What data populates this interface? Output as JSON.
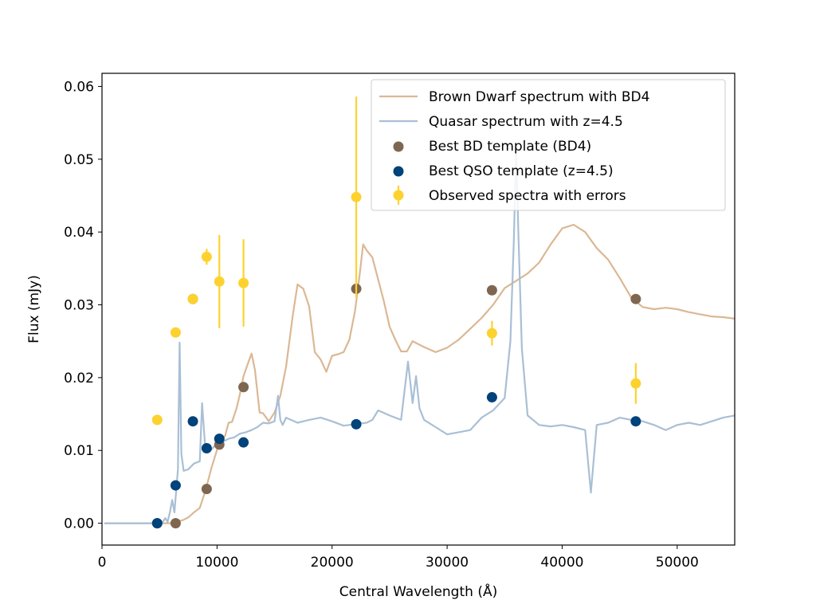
{
  "chart_data": {
    "type": "line",
    "title": "",
    "xlabel": "Central Wavelength (Å)",
    "ylabel": "Flux (mJy)",
    "xlim": [
      0,
      55000
    ],
    "ylim": [
      -0.003,
      0.0618
    ],
    "grid": false,
    "legend_position": "top-right",
    "x_ticks": [
      0,
      10000,
      20000,
      30000,
      40000,
      50000
    ],
    "x_tick_labels": [
      "0",
      "10000",
      "20000",
      "30000",
      "40000",
      "50000"
    ],
    "y_ticks": [
      0.0,
      0.01,
      0.02,
      0.03,
      0.04,
      0.05,
      0.06
    ],
    "y_tick_labels": [
      "0.00",
      "0.01",
      "0.02",
      "0.03",
      "0.04",
      "0.05",
      "0.06"
    ],
    "series": [
      {
        "name": "Brown Dwarf spectrum with BD4",
        "kind": "line",
        "color": "#dbb894",
        "x": [
          200,
          3000,
          5000,
          6000,
          6300,
          6600,
          7000,
          7500,
          8000,
          8500,
          9000,
          9500,
          10000,
          10300,
          10700,
          11000,
          11300,
          11700,
          12000,
          12300,
          12700,
          13000,
          13300,
          13700,
          14000,
          14500,
          15000,
          15500,
          16000,
          16600,
          17000,
          17500,
          18000,
          18500,
          19000,
          19500,
          20000,
          20500,
          21000,
          21500,
          22000,
          22400,
          22700,
          23000,
          23500,
          24000,
          24500,
          25000,
          25500,
          26000,
          26500,
          27000,
          27500,
          28000,
          29000,
          30000,
          31000,
          32000,
          33000,
          34000,
          35000,
          36000,
          37000,
          38000,
          39000,
          40000,
          41000,
          42000,
          43000,
          44000,
          45000,
          46000,
          47000,
          48000,
          49000,
          50000,
          51000,
          52000,
          53000,
          54000,
          55000
        ],
        "y": [
          0.0,
          0.0,
          0.0,
          0.0,
          0.0002,
          0.0003,
          0.0004,
          0.0008,
          0.0015,
          0.0021,
          0.0045,
          0.0075,
          0.0101,
          0.0115,
          0.012,
          0.0138,
          0.0139,
          0.0158,
          0.0178,
          0.0202,
          0.022,
          0.0233,
          0.021,
          0.0152,
          0.0151,
          0.014,
          0.0152,
          0.0175,
          0.0215,
          0.0287,
          0.0328,
          0.0322,
          0.0298,
          0.0235,
          0.0225,
          0.0208,
          0.023,
          0.0232,
          0.0235,
          0.0252,
          0.0292,
          0.0342,
          0.0383,
          0.0375,
          0.0365,
          0.0335,
          0.0305,
          0.027,
          0.0252,
          0.0236,
          0.0236,
          0.025,
          0.0246,
          0.0242,
          0.0235,
          0.0241,
          0.0252,
          0.0267,
          0.0282,
          0.03,
          0.0323,
          0.0333,
          0.0343,
          0.0358,
          0.0383,
          0.0405,
          0.041,
          0.04,
          0.0378,
          0.0362,
          0.0337,
          0.031,
          0.0297,
          0.0294,
          0.0296,
          0.0294,
          0.029,
          0.0287,
          0.0284,
          0.0283,
          0.0281
        ]
      },
      {
        "name": "Quasar spectrum with z=4.5",
        "kind": "line",
        "color": "#a9bfd5",
        "x": [
          200,
          4500,
          5200,
          5500,
          5700,
          5900,
          6100,
          6300,
          6600,
          6750,
          6900,
          7100,
          7500,
          8000,
          8500,
          8700,
          9000,
          9500,
          10000,
          10500,
          11000,
          11500,
          12000,
          12500,
          13000,
          13500,
          14000,
          14500,
          15000,
          15300,
          15500,
          15700,
          16000,
          17000,
          18000,
          19000,
          20000,
          21000,
          22000,
          23000,
          23500,
          24000,
          25000,
          26000,
          26600,
          27000,
          27300,
          27600,
          28000,
          29000,
          30000,
          31000,
          32000,
          33000,
          34000,
          35000,
          35500,
          35800,
          36000,
          36200,
          36500,
          37000,
          38000,
          39000,
          40000,
          41000,
          42000,
          42500,
          43000,
          44000,
          45000,
          46000,
          47000,
          48000,
          49000,
          50000,
          51000,
          52000,
          53000,
          54000,
          55000
        ],
        "y": [
          0.0,
          0.0,
          0.0,
          0.0007,
          0.0002,
          0.0015,
          0.0032,
          0.0015,
          0.0074,
          0.0248,
          0.0095,
          0.0072,
          0.0074,
          0.0082,
          0.0085,
          0.0165,
          0.0098,
          0.0101,
          0.011,
          0.0112,
          0.0116,
          0.0118,
          0.0123,
          0.0125,
          0.0128,
          0.0132,
          0.0138,
          0.0137,
          0.014,
          0.0175,
          0.0142,
          0.0135,
          0.0145,
          0.0138,
          0.0142,
          0.0145,
          0.014,
          0.0134,
          0.0136,
          0.0138,
          0.0142,
          0.0155,
          0.0148,
          0.0142,
          0.0222,
          0.0165,
          0.0202,
          0.0158,
          0.0142,
          0.0132,
          0.0122,
          0.0125,
          0.0128,
          0.0145,
          0.0155,
          0.0172,
          0.025,
          0.0388,
          0.0515,
          0.0395,
          0.024,
          0.0148,
          0.0135,
          0.0133,
          0.0135,
          0.0132,
          0.0128,
          0.0042,
          0.0135,
          0.0138,
          0.0145,
          0.0142,
          0.014,
          0.0135,
          0.0128,
          0.0135,
          0.0138,
          0.0135,
          0.014,
          0.0145,
          0.0148
        ]
      },
      {
        "name": "Best BD template (BD4)",
        "kind": "scatter",
        "color": "#7f6650",
        "x": [
          4800,
          6400,
          7900,
          9100,
          10200,
          12300,
          22100,
          33900,
          46400
        ],
        "y": [
          0.0,
          0.0,
          0.0308,
          0.0047,
          0.0108,
          0.0187,
          0.0322,
          0.032,
          0.0308
        ]
      },
      {
        "name": "Best QSO template (z=4.5)",
        "kind": "scatter",
        "color": "#00427a",
        "x": [
          4800,
          6400,
          7900,
          9100,
          10200,
          12300,
          22100,
          33900,
          46400
        ],
        "y": [
          0.0,
          0.0052,
          0.014,
          0.0103,
          0.0116,
          0.0111,
          0.0136,
          0.0173,
          0.014
        ]
      },
      {
        "name": "Observed spectra with errors",
        "kind": "errorbar",
        "color": "#fdd22f",
        "x": [
          4800,
          6400,
          7900,
          9100,
          10200,
          12300,
          22100,
          33900,
          46400
        ],
        "y": [
          0.0142,
          0.0262,
          0.0308,
          0.0366,
          0.0332,
          0.033,
          0.0448,
          0.0261,
          0.0192
        ],
        "yerr": [
          0.0,
          0.0007,
          0.0005,
          0.0011,
          0.0064,
          0.006,
          0.0138,
          0.0017,
          0.0028
        ]
      }
    ]
  }
}
